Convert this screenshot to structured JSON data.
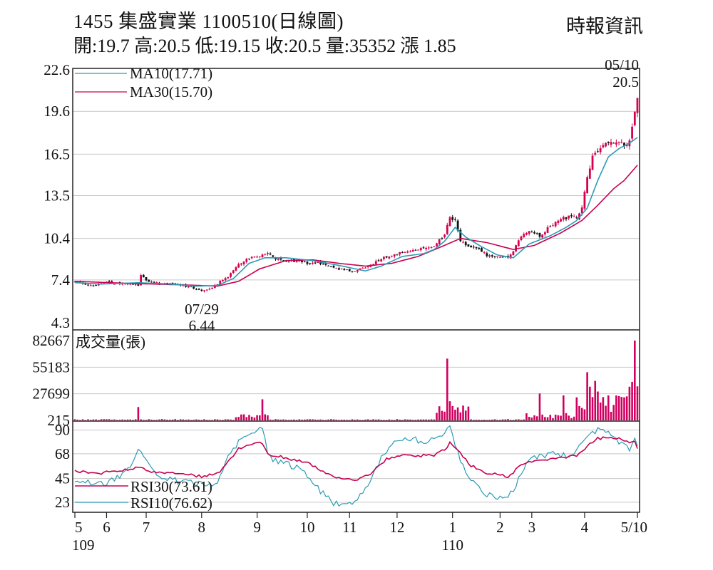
{
  "header": {
    "title": "1455  集盛實業 1100510(日線圖)",
    "ohlc": "開:19.7 高:20.5 低:19.15 收:20.5 量:35352 漲 1.85",
    "source": "時報資訊"
  },
  "colors": {
    "up": "#d6004f",
    "down": "#111111",
    "ma10": "#2a9bb5",
    "ma30": "#c8004f",
    "volume": "#d10060",
    "rsi30": "#c8004f",
    "rsi10": "#2a9bb5",
    "grid": "#c8c8c8"
  },
  "chart_data": [
    {
      "type": "candlestick",
      "title": "1455  集盛實業 1100510(日線圖)",
      "ylim": [
        4.3,
        22.6
      ],
      "yticks": [
        "22.6",
        "19.6",
        "16.5",
        "13.5",
        "10.4",
        "7.4",
        "4.3"
      ],
      "legend": [
        "MA10(17.71)",
        "MA30(15.70)"
      ],
      "annotations": [
        {
          "date": "07/29",
          "value": "6.44"
        },
        {
          "date": "05/10",
          "value": "20.5"
        }
      ],
      "price_path": [
        [
          0,
          7.3
        ],
        [
          6,
          7.0
        ],
        [
          12,
          7.2
        ],
        [
          20,
          7.1
        ],
        [
          24,
          7.0
        ],
        [
          25,
          7.7
        ],
        [
          27,
          7.4
        ],
        [
          30,
          7.2
        ],
        [
          38,
          7.1
        ],
        [
          44,
          6.9
        ],
        [
          48,
          6.6
        ],
        [
          51,
          6.7
        ],
        [
          55,
          7.3
        ],
        [
          58,
          7.6
        ],
        [
          62,
          8.5
        ],
        [
          66,
          9.0
        ],
        [
          70,
          9.1
        ],
        [
          73,
          9.4
        ],
        [
          76,
          8.9
        ],
        [
          82,
          8.8
        ],
        [
          88,
          8.6
        ],
        [
          94,
          8.6
        ],
        [
          100,
          8.2
        ],
        [
          106,
          8.0
        ],
        [
          112,
          8.5
        ],
        [
          118,
          9.1
        ],
        [
          124,
          9.4
        ],
        [
          130,
          9.6
        ],
        [
          136,
          9.9
        ],
        [
          140,
          10.7
        ],
        [
          142,
          11.9
        ],
        [
          144,
          11.8
        ],
        [
          146,
          10.3
        ],
        [
          148,
          9.9
        ],
        [
          152,
          9.7
        ],
        [
          156,
          9.2
        ],
        [
          160,
          9.1
        ],
        [
          164,
          9.0
        ],
        [
          166,
          9.5
        ],
        [
          169,
          10.6
        ],
        [
          172,
          10.9
        ],
        [
          176,
          10.6
        ],
        [
          180,
          11.3
        ],
        [
          184,
          11.8
        ],
        [
          188,
          12.0
        ],
        [
          190,
          11.8
        ],
        [
          192,
          12.7
        ],
        [
          194,
          14.8
        ],
        [
          196,
          16.3
        ],
        [
          198,
          16.8
        ],
        [
          202,
          17.3
        ],
        [
          205,
          17.5
        ],
        [
          208,
          17.1
        ],
        [
          210,
          17.4
        ],
        [
          212,
          19.7
        ],
        [
          213,
          20.5
        ]
      ],
      "ma10_path": [
        [
          0,
          7.2
        ],
        [
          10,
          7.1
        ],
        [
          24,
          7.2
        ],
        [
          36,
          7.1
        ],
        [
          46,
          6.95
        ],
        [
          54,
          7.0
        ],
        [
          60,
          7.5
        ],
        [
          66,
          8.6
        ],
        [
          72,
          9.0
        ],
        [
          80,
          9.0
        ],
        [
          90,
          8.8
        ],
        [
          100,
          8.45
        ],
        [
          110,
          8.05
        ],
        [
          116,
          8.4
        ],
        [
          124,
          9.1
        ],
        [
          132,
          9.3
        ],
        [
          136,
          9.6
        ],
        [
          140,
          10.2
        ],
        [
          144,
          11.2
        ],
        [
          148,
          10.5
        ],
        [
          154,
          9.8
        ],
        [
          160,
          9.2
        ],
        [
          166,
          9.0
        ],
        [
          172,
          10.0
        ],
        [
          180,
          10.6
        ],
        [
          186,
          11.2
        ],
        [
          190,
          11.7
        ],
        [
          194,
          12.6
        ],
        [
          198,
          14.6
        ],
        [
          202,
          16.3
        ],
        [
          206,
          16.9
        ],
        [
          210,
          17.3
        ],
        [
          213,
          17.71
        ]
      ],
      "ma30_path": [
        [
          0,
          7.3
        ],
        [
          20,
          7.15
        ],
        [
          40,
          7.05
        ],
        [
          54,
          6.95
        ],
        [
          62,
          7.3
        ],
        [
          70,
          8.2
        ],
        [
          80,
          8.8
        ],
        [
          90,
          8.85
        ],
        [
          100,
          8.6
        ],
        [
          110,
          8.4
        ],
        [
          120,
          8.6
        ],
        [
          130,
          9.1
        ],
        [
          140,
          9.9
        ],
        [
          146,
          10.4
        ],
        [
          156,
          10.1
        ],
        [
          166,
          9.6
        ],
        [
          174,
          9.9
        ],
        [
          184,
          10.8
        ],
        [
          192,
          11.7
        ],
        [
          198,
          12.8
        ],
        [
          204,
          14.0
        ],
        [
          208,
          14.6
        ],
        [
          213,
          15.7
        ]
      ]
    },
    {
      "type": "bar",
      "title": "成交量(張)",
      "yticks": [
        "82667",
        "55183",
        "27699",
        "215"
      ],
      "ylim": [
        215,
        82667
      ],
      "markers": [
        [
          0,
          1400
        ],
        [
          24,
          14000
        ],
        [
          71,
          22000
        ],
        [
          141,
          64000
        ],
        [
          142,
          20000
        ],
        [
          143,
          15000
        ],
        [
          176,
          28000
        ],
        [
          185,
          26000
        ],
        [
          194,
          50000
        ],
        [
          195,
          35000
        ],
        [
          197,
          41000
        ],
        [
          198,
          30000
        ],
        [
          202,
          26000
        ],
        [
          209,
          25000
        ],
        [
          210,
          35000
        ],
        [
          211,
          40000
        ],
        [
          212,
          82667
        ],
        [
          213,
          35352
        ]
      ]
    },
    {
      "type": "line",
      "title": "RSI",
      "ylim": [
        15,
        95
      ],
      "yticks": [
        "90",
        "68",
        "45",
        "23"
      ],
      "legend": [
        "RSI30(73.61)",
        "RSI10(76.62)"
      ],
      "rsi30_path": [
        [
          0,
          52
        ],
        [
          5,
          51
        ],
        [
          10,
          50
        ],
        [
          15,
          52
        ],
        [
          20,
          53
        ],
        [
          24,
          55
        ],
        [
          28,
          52
        ],
        [
          35,
          50
        ],
        [
          44,
          48
        ],
        [
          48,
          47
        ],
        [
          52,
          49
        ],
        [
          55,
          51
        ],
        [
          58,
          60
        ],
        [
          62,
          73
        ],
        [
          66,
          76
        ],
        [
          71,
          78
        ],
        [
          73,
          68
        ],
        [
          80,
          64
        ],
        [
          88,
          60
        ],
        [
          94,
          52
        ],
        [
          100,
          45
        ],
        [
          106,
          43
        ],
        [
          112,
          50
        ],
        [
          118,
          63
        ],
        [
          124,
          66
        ],
        [
          130,
          66
        ],
        [
          136,
          67
        ],
        [
          140,
          72
        ],
        [
          142,
          78
        ],
        [
          146,
          68
        ],
        [
          150,
          57
        ],
        [
          156,
          50
        ],
        [
          162,
          48
        ],
        [
          164,
          46
        ],
        [
          168,
          56
        ],
        [
          172,
          60
        ],
        [
          176,
          62
        ],
        [
          180,
          63
        ],
        [
          186,
          65
        ],
        [
          190,
          66
        ],
        [
          194,
          75
        ],
        [
          198,
          82
        ],
        [
          202,
          83
        ],
        [
          206,
          82
        ],
        [
          210,
          78
        ],
        [
          212,
          79
        ],
        [
          213,
          73.61
        ]
      ],
      "rsi10_path": [
        [
          0,
          44
        ],
        [
          6,
          41
        ],
        [
          12,
          40
        ],
        [
          18,
          48
        ],
        [
          22,
          60
        ],
        [
          24,
          71
        ],
        [
          28,
          57
        ],
        [
          33,
          45
        ],
        [
          40,
          42
        ],
        [
          46,
          40
        ],
        [
          50,
          39
        ],
        [
          54,
          42
        ],
        [
          57,
          60
        ],
        [
          60,
          73
        ],
        [
          64,
          86
        ],
        [
          68,
          88
        ],
        [
          71,
          93
        ],
        [
          73,
          66
        ],
        [
          78,
          60
        ],
        [
          86,
          54
        ],
        [
          92,
          36
        ],
        [
          98,
          22
        ],
        [
          104,
          20
        ],
        [
          110,
          35
        ],
        [
          116,
          65
        ],
        [
          120,
          78
        ],
        [
          126,
          82
        ],
        [
          132,
          80
        ],
        [
          136,
          82
        ],
        [
          140,
          88
        ],
        [
          142,
          91
        ],
        [
          146,
          62
        ],
        [
          150,
          42
        ],
        [
          156,
          30
        ],
        [
          162,
          26
        ],
        [
          166,
          35
        ],
        [
          172,
          64
        ],
        [
          176,
          66
        ],
        [
          182,
          68
        ],
        [
          188,
          66
        ],
        [
          194,
          85
        ],
        [
          198,
          91
        ],
        [
          202,
          88
        ],
        [
          206,
          78
        ],
        [
          210,
          72
        ],
        [
          212,
          80
        ],
        [
          213,
          76.62
        ]
      ]
    }
  ],
  "x_axis": {
    "months": [
      {
        "label": "5",
        "day": 0
      },
      {
        "label": "6",
        "day": 12
      },
      {
        "label": "7",
        "day": 27
      },
      {
        "label": "8",
        "day": 48
      },
      {
        "label": "9",
        "day": 69
      },
      {
        "label": "10",
        "day": 88
      },
      {
        "label": "11",
        "day": 104
      },
      {
        "label": "12",
        "day": 122
      },
      {
        "label": "1",
        "day": 143
      },
      {
        "label": "2",
        "day": 161
      },
      {
        "label": "3",
        "day": 173
      },
      {
        "label": "4",
        "day": 193
      },
      {
        "label": "5/10",
        "day": 213
      }
    ],
    "years": [
      {
        "label": "109",
        "day": 0
      },
      {
        "label": "110",
        "day": 143
      }
    ]
  }
}
